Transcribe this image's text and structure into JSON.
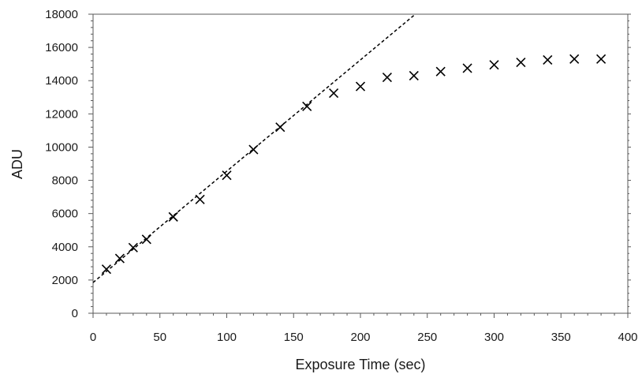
{
  "chart_data": {
    "type": "scatter",
    "title": "",
    "xlabel": "Exposure Time (sec)",
    "ylabel": "ADU",
    "xlim": [
      0,
      400
    ],
    "ylim": [
      0,
      18000
    ],
    "xticks": [
      "0",
      "50",
      "100",
      "150",
      "200",
      "250",
      "300",
      "350",
      "400"
    ],
    "yticks": [
      "0",
      "2000",
      "4000",
      "6000",
      "8000",
      "10000",
      "12000",
      "14000",
      "16000",
      "18000"
    ],
    "grid": false,
    "legend": "none",
    "marker": "x",
    "series": [
      {
        "x": [
          10,
          20,
          30,
          40,
          60,
          80,
          100,
          120,
          140,
          160,
          180,
          200,
          220,
          240,
          260,
          280,
          300,
          320,
          340,
          360,
          380
        ],
        "y": [
          2650,
          3300,
          3950,
          4450,
          5800,
          6850,
          8300,
          9850,
          11200,
          12450,
          13250,
          13650,
          14200,
          14300,
          14550,
          14750,
          14950,
          15100,
          15250,
          15300,
          15300
        ]
      }
    ],
    "trendline": {
      "style": "dashed",
      "intercept": 1850,
      "slope": 67
    },
    "colors": {
      "marker": "#000000",
      "trendline": "#000000",
      "axis": "#595959"
    }
  }
}
